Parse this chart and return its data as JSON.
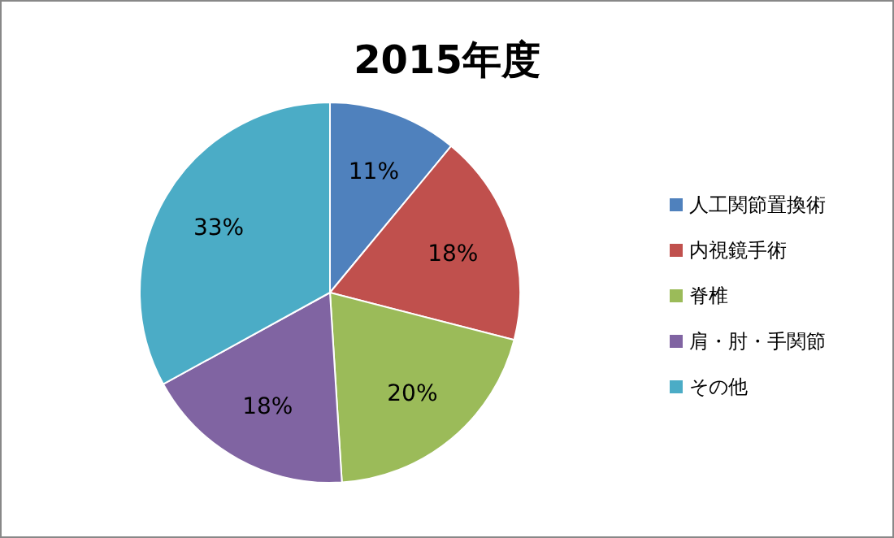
{
  "chart_data": {
    "type": "pie",
    "title": "2015年度",
    "categories": [
      "人工関節置換術",
      "内視鏡手術",
      "脊椎",
      "肩・肘・手関節",
      "その他"
    ],
    "values": [
      11,
      18,
      20,
      18,
      33
    ],
    "colors": [
      "#4f81bd",
      "#c0504d",
      "#9bbb59",
      "#8064a2",
      "#4bacc6"
    ],
    "value_labels": [
      "11%",
      "18%",
      "20%",
      "18%",
      "33%"
    ],
    "legend": "right"
  }
}
